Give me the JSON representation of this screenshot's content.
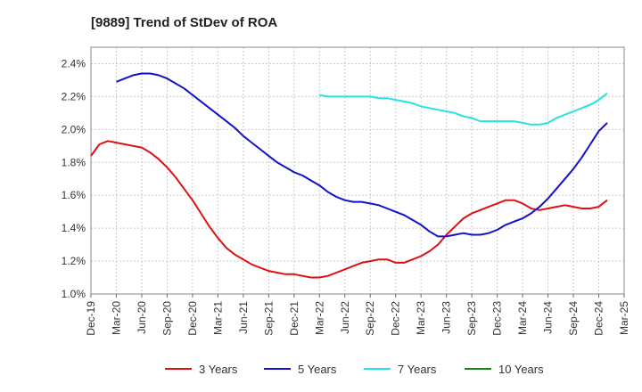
{
  "chart_data": {
    "type": "line",
    "title": "[9889]  Trend of StDev of ROA",
    "xlabel": "",
    "ylabel": "",
    "ylim": [
      1.0,
      2.5
    ],
    "y_ticks": [
      "1.0%",
      "1.2%",
      "1.4%",
      "1.6%",
      "1.8%",
      "2.0%",
      "2.2%",
      "2.4%"
    ],
    "y_tick_values": [
      1.0,
      1.2,
      1.4,
      1.6,
      1.8,
      2.0,
      2.2,
      2.4
    ],
    "x_tick_labels": [
      "Dec-19",
      "Mar-20",
      "Jun-20",
      "Sep-20",
      "Dec-20",
      "Mar-21",
      "Jun-21",
      "Sep-21",
      "Dec-21",
      "Mar-22",
      "Jun-22",
      "Sep-22",
      "Dec-22",
      "Mar-23",
      "Jun-23",
      "Sep-23",
      "Dec-23",
      "Mar-24",
      "Jun-24",
      "Sep-24",
      "Dec-24",
      "Mar-25"
    ],
    "grid": true,
    "legend_position": "bottom",
    "series": [
      {
        "name": "3 Years",
        "color": "#dd1111",
        "points": [
          [
            "Dec-19",
            1.84
          ],
          [
            "Jan-20",
            1.91
          ],
          [
            "Feb-20",
            1.93
          ],
          [
            "Mar-20",
            1.92
          ],
          [
            "Apr-20",
            1.91
          ],
          [
            "May-20",
            1.9
          ],
          [
            "Jun-20",
            1.89
          ],
          [
            "Jul-20",
            1.86
          ],
          [
            "Aug-20",
            1.82
          ],
          [
            "Sep-20",
            1.77
          ],
          [
            "Oct-20",
            1.71
          ],
          [
            "Nov-20",
            1.64
          ],
          [
            "Dec-20",
            1.57
          ],
          [
            "Jan-21",
            1.49
          ],
          [
            "Feb-21",
            1.41
          ],
          [
            "Mar-21",
            1.34
          ],
          [
            "Apr-21",
            1.28
          ],
          [
            "May-21",
            1.24
          ],
          [
            "Jun-21",
            1.21
          ],
          [
            "Jul-21",
            1.18
          ],
          [
            "Aug-21",
            1.16
          ],
          [
            "Sep-21",
            1.14
          ],
          [
            "Oct-21",
            1.13
          ],
          [
            "Nov-21",
            1.12
          ],
          [
            "Dec-21",
            1.12
          ],
          [
            "Jan-22",
            1.11
          ],
          [
            "Feb-22",
            1.1
          ],
          [
            "Mar-22",
            1.1
          ],
          [
            "Apr-22",
            1.11
          ],
          [
            "May-22",
            1.13
          ],
          [
            "Jun-22",
            1.15
          ],
          [
            "Jul-22",
            1.17
          ],
          [
            "Aug-22",
            1.19
          ],
          [
            "Sep-22",
            1.2
          ],
          [
            "Oct-22",
            1.21
          ],
          [
            "Nov-22",
            1.21
          ],
          [
            "Dec-22",
            1.19
          ],
          [
            "Jan-23",
            1.19
          ],
          [
            "Feb-23",
            1.21
          ],
          [
            "Mar-23",
            1.23
          ],
          [
            "Apr-23",
            1.26
          ],
          [
            "May-23",
            1.3
          ],
          [
            "Jun-23",
            1.36
          ],
          [
            "Jul-23",
            1.41
          ],
          [
            "Aug-23",
            1.46
          ],
          [
            "Sep-23",
            1.49
          ],
          [
            "Oct-23",
            1.51
          ],
          [
            "Nov-23",
            1.53
          ],
          [
            "Dec-23",
            1.55
          ],
          [
            "Jan-24",
            1.57
          ],
          [
            "Feb-24",
            1.57
          ],
          [
            "Mar-24",
            1.55
          ],
          [
            "Apr-24",
            1.52
          ],
          [
            "May-24",
            1.51
          ],
          [
            "Jun-24",
            1.52
          ],
          [
            "Jul-24",
            1.53
          ],
          [
            "Aug-24",
            1.54
          ],
          [
            "Sep-24",
            1.53
          ],
          [
            "Oct-24",
            1.52
          ],
          [
            "Nov-24",
            1.52
          ],
          [
            "Dec-24",
            1.53
          ],
          [
            "Jan-25",
            1.57
          ]
        ]
      },
      {
        "name": "5 Years",
        "color": "#1111cc",
        "points": [
          [
            "Mar-20",
            2.29
          ],
          [
            "Apr-20",
            2.31
          ],
          [
            "May-20",
            2.33
          ],
          [
            "Jun-20",
            2.34
          ],
          [
            "Jul-20",
            2.34
          ],
          [
            "Aug-20",
            2.33
          ],
          [
            "Sep-20",
            2.31
          ],
          [
            "Oct-20",
            2.28
          ],
          [
            "Nov-20",
            2.25
          ],
          [
            "Dec-20",
            2.21
          ],
          [
            "Jan-21",
            2.17
          ],
          [
            "Feb-21",
            2.13
          ],
          [
            "Mar-21",
            2.09
          ],
          [
            "Apr-21",
            2.05
          ],
          [
            "May-21",
            2.01
          ],
          [
            "Jun-21",
            1.96
          ],
          [
            "Jul-21",
            1.92
          ],
          [
            "Aug-21",
            1.88
          ],
          [
            "Sep-21",
            1.84
          ],
          [
            "Oct-21",
            1.8
          ],
          [
            "Nov-21",
            1.77
          ],
          [
            "Dec-21",
            1.74
          ],
          [
            "Jan-22",
            1.72
          ],
          [
            "Feb-22",
            1.69
          ],
          [
            "Mar-22",
            1.66
          ],
          [
            "Apr-22",
            1.62
          ],
          [
            "May-22",
            1.59
          ],
          [
            "Jun-22",
            1.57
          ],
          [
            "Jul-22",
            1.56
          ],
          [
            "Aug-22",
            1.56
          ],
          [
            "Sep-22",
            1.55
          ],
          [
            "Oct-22",
            1.54
          ],
          [
            "Nov-22",
            1.52
          ],
          [
            "Dec-22",
            1.5
          ],
          [
            "Jan-23",
            1.48
          ],
          [
            "Feb-23",
            1.45
          ],
          [
            "Mar-23",
            1.42
          ],
          [
            "Apr-23",
            1.38
          ],
          [
            "May-23",
            1.35
          ],
          [
            "Jun-23",
            1.35
          ],
          [
            "Jul-23",
            1.36
          ],
          [
            "Aug-23",
            1.37
          ],
          [
            "Sep-23",
            1.36
          ],
          [
            "Oct-23",
            1.36
          ],
          [
            "Nov-23",
            1.37
          ],
          [
            "Dec-23",
            1.39
          ],
          [
            "Jan-24",
            1.42
          ],
          [
            "Feb-24",
            1.44
          ],
          [
            "Mar-24",
            1.46
          ],
          [
            "Apr-24",
            1.49
          ],
          [
            "May-24",
            1.53
          ],
          [
            "Jun-24",
            1.58
          ],
          [
            "Jul-24",
            1.64
          ],
          [
            "Aug-24",
            1.7
          ],
          [
            "Sep-24",
            1.76
          ],
          [
            "Oct-24",
            1.83
          ],
          [
            "Nov-24",
            1.91
          ],
          [
            "Dec-24",
            1.99
          ],
          [
            "Jan-25",
            2.04
          ]
        ]
      },
      {
        "name": "7 Years",
        "color": "#22e4e4",
        "points": [
          [
            "Mar-22",
            2.21
          ],
          [
            "Apr-22",
            2.2
          ],
          [
            "May-22",
            2.2
          ],
          [
            "Jun-22",
            2.2
          ],
          [
            "Jul-22",
            2.2
          ],
          [
            "Aug-22",
            2.2
          ],
          [
            "Sep-22",
            2.2
          ],
          [
            "Oct-22",
            2.19
          ],
          [
            "Nov-22",
            2.19
          ],
          [
            "Dec-22",
            2.18
          ],
          [
            "Jan-23",
            2.17
          ],
          [
            "Feb-23",
            2.16
          ],
          [
            "Mar-23",
            2.14
          ],
          [
            "Apr-23",
            2.13
          ],
          [
            "May-23",
            2.12
          ],
          [
            "Jun-23",
            2.11
          ],
          [
            "Jul-23",
            2.1
          ],
          [
            "Aug-23",
            2.08
          ],
          [
            "Sep-23",
            2.07
          ],
          [
            "Oct-23",
            2.05
          ],
          [
            "Nov-23",
            2.05
          ],
          [
            "Dec-23",
            2.05
          ],
          [
            "Jan-24",
            2.05
          ],
          [
            "Feb-24",
            2.05
          ],
          [
            "Mar-24",
            2.04
          ],
          [
            "Apr-24",
            2.03
          ],
          [
            "May-24",
            2.03
          ],
          [
            "Jun-24",
            2.04
          ],
          [
            "Jul-24",
            2.07
          ],
          [
            "Aug-24",
            2.09
          ],
          [
            "Sep-24",
            2.11
          ],
          [
            "Oct-24",
            2.13
          ],
          [
            "Nov-24",
            2.15
          ],
          [
            "Dec-24",
            2.18
          ],
          [
            "Jan-25",
            2.22
          ]
        ]
      },
      {
        "name": "10 Years",
        "color": "#118811",
        "points": []
      }
    ]
  }
}
